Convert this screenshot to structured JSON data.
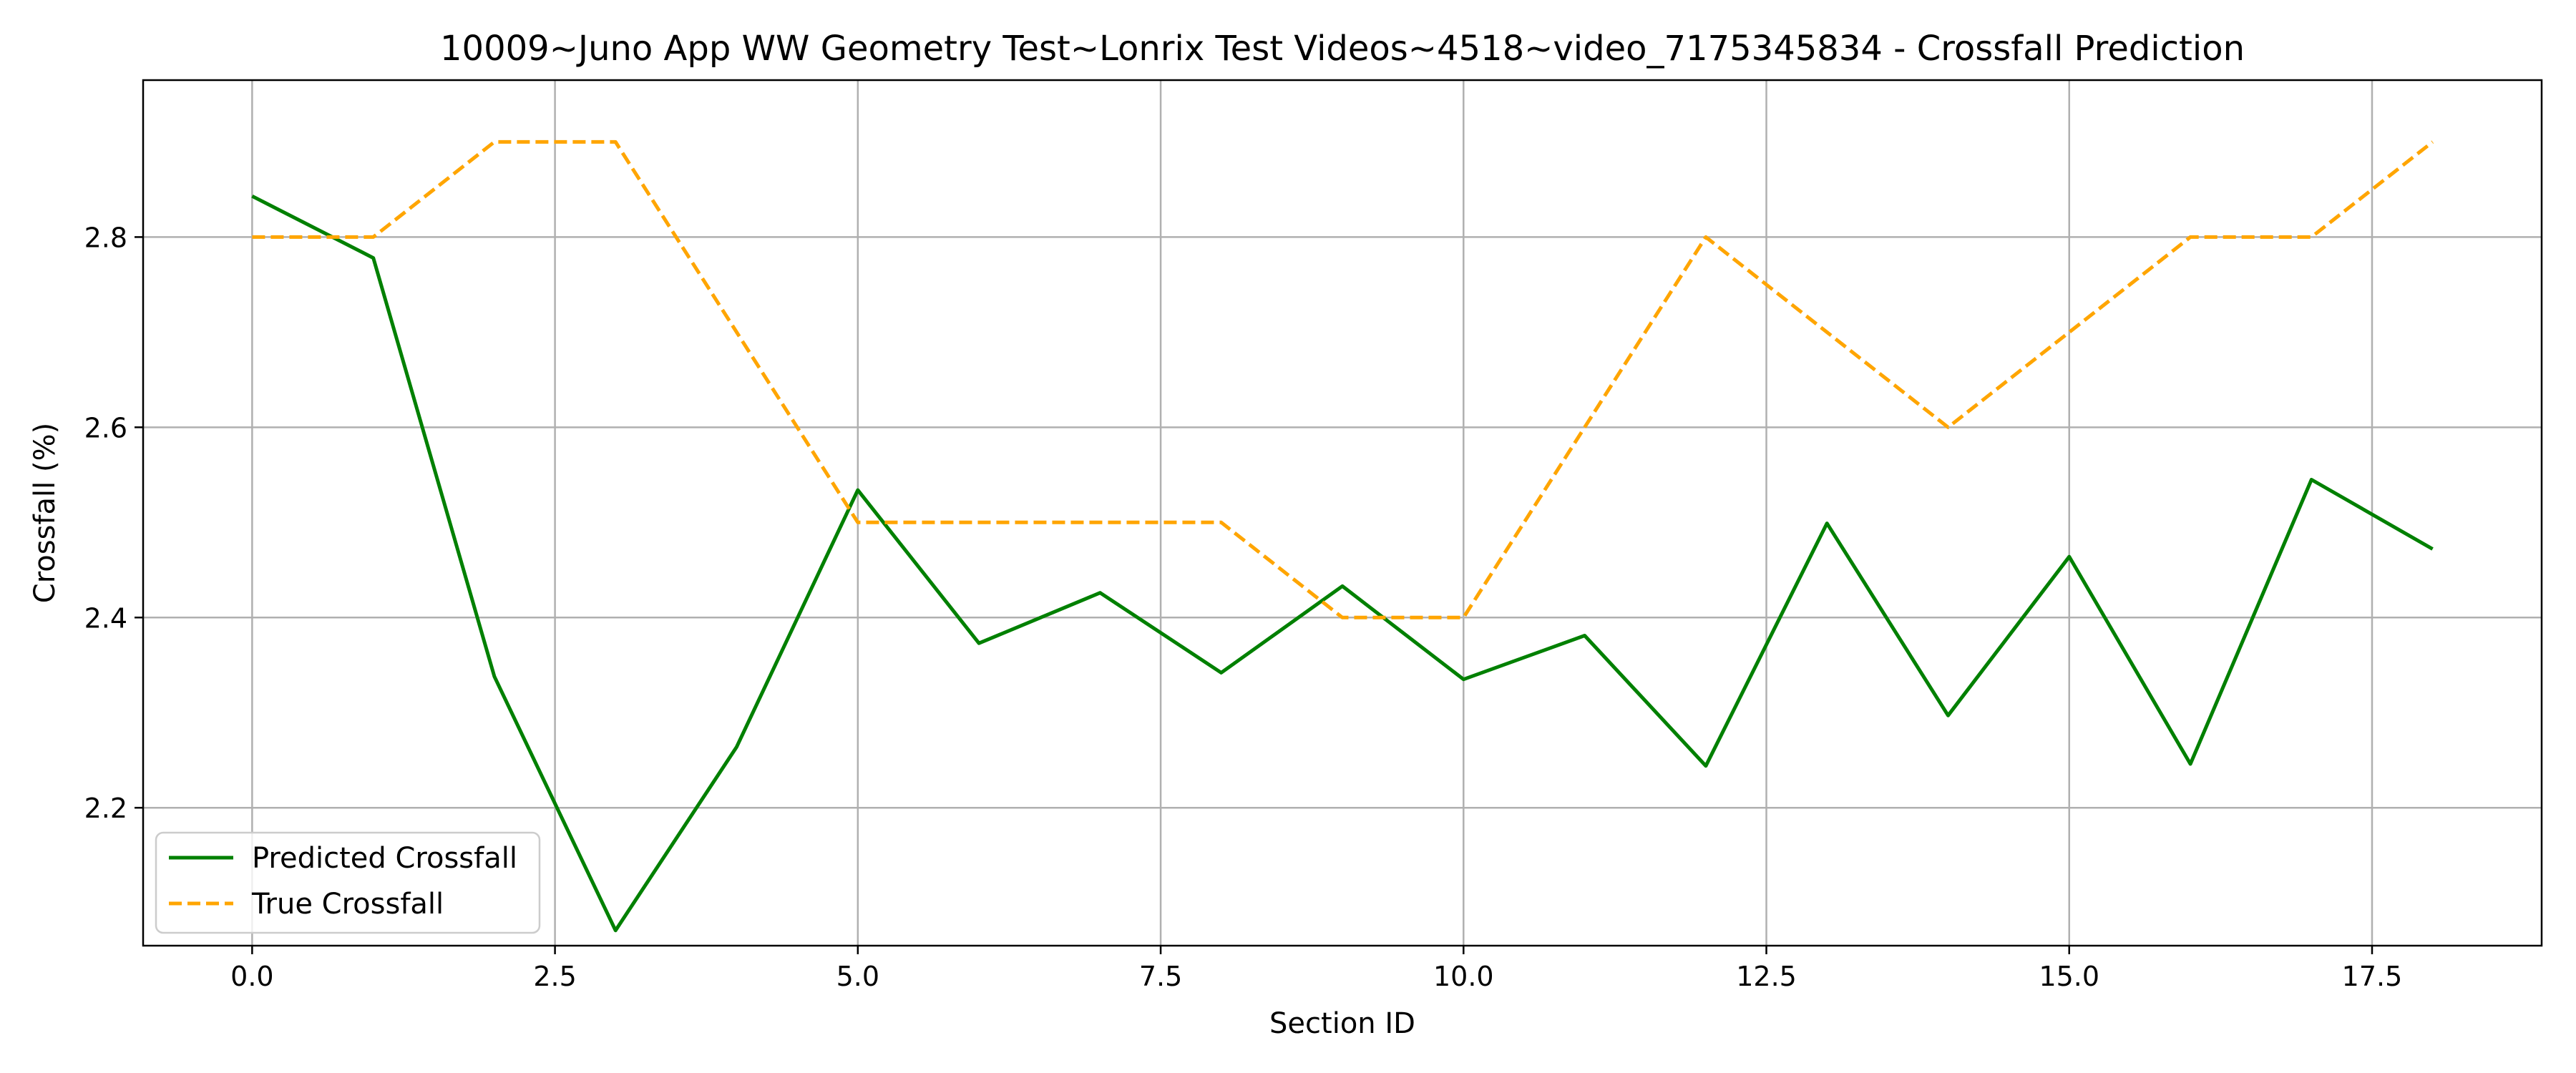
{
  "chart_data": {
    "type": "line",
    "title": "10009~Juno App WW Geometry Test~Lonrix Test Videos~4518~video_7175345834 - Crossfall Prediction",
    "xlabel": "Section ID",
    "ylabel": "Crossfall (%)",
    "xlim": [
      -0.9,
      18.9
    ],
    "ylim": [
      2.055,
      2.965
    ],
    "xticks": [
      0.0,
      2.5,
      5.0,
      7.5,
      10.0,
      12.5,
      15.0,
      17.5
    ],
    "xtick_labels": [
      "0.0",
      "2.5",
      "5.0",
      "7.5",
      "10.0",
      "12.5",
      "15.0",
      "17.5"
    ],
    "yticks": [
      2.2,
      2.4,
      2.6,
      2.8
    ],
    "ytick_labels": [
      "2.2",
      "2.4",
      "2.6",
      "2.8"
    ],
    "grid": true,
    "legend_position": "lower-left",
    "x": [
      0,
      1,
      2,
      3,
      4,
      5,
      6,
      7,
      8,
      9,
      10,
      11,
      12,
      13,
      14,
      15,
      16,
      17,
      18
    ],
    "series": [
      {
        "name": "Predicted Crossfall",
        "color": "#008000",
        "style": "solid",
        "values": [
          2.843,
          2.778,
          2.338,
          2.071,
          2.264,
          2.534,
          2.373,
          2.426,
          2.342,
          2.433,
          2.335,
          2.381,
          2.244,
          2.499,
          2.297,
          2.464,
          2.246,
          2.545,
          2.472
        ]
      },
      {
        "name": "True Crossfall",
        "color": "#FFA500",
        "style": "dashed",
        "values": [
          2.8,
          2.8,
          2.9,
          2.9,
          2.7,
          2.5,
          2.5,
          2.5,
          2.5,
          2.4,
          2.4,
          2.6,
          2.8,
          2.7,
          2.6,
          2.7,
          2.8,
          2.8,
          2.9
        ]
      }
    ]
  }
}
